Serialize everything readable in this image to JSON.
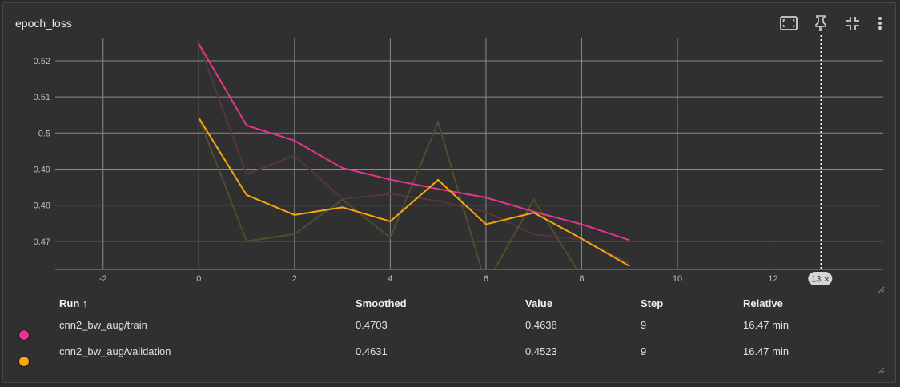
{
  "card": {
    "title": "epoch_loss",
    "toolbar": {
      "fit_icon": "fit-domain-icon",
      "pin_icon": "pin-icon",
      "collapse_icon": "collapse-icon",
      "more_icon": "more-vert-icon"
    }
  },
  "chart_data": {
    "type": "line",
    "title": "epoch_loss",
    "xlabel": "",
    "ylabel": "",
    "xlim": [
      -3,
      14.3
    ],
    "ylim": [
      0.4622,
      0.5262
    ],
    "x_ticks": [
      -2,
      0,
      2,
      4,
      6,
      8,
      10,
      12
    ],
    "y_ticks": [
      0.47,
      0.48,
      0.49,
      0.5,
      0.51,
      0.52
    ],
    "y_tick_labels": [
      "0.47",
      "0.48",
      "0.49",
      "0.5",
      "0.51",
      "0.52"
    ],
    "grid": true,
    "hover_step": 13,
    "hover_label": "13",
    "series": [
      {
        "name": "cnn2_bw_aug/train",
        "color": "#e5358f",
        "raw_color": "#55363f",
        "x": [
          0,
          1,
          2,
          3,
          4,
          5,
          6,
          7,
          8,
          9
        ],
        "smoothed": [
          0.5247,
          0.5021,
          0.4979,
          0.4903,
          0.4871,
          0.4845,
          0.4821,
          0.4782,
          0.4747,
          0.4703
        ],
        "raw": [
          0.5247,
          0.4886,
          0.4938,
          0.4817,
          0.4831,
          0.4812,
          0.4781,
          0.4719,
          0.4705,
          0.4638
        ]
      },
      {
        "name": "cnn2_bw_aug/validation",
        "color": "#f7a70d",
        "raw_color": "#544a2e",
        "x": [
          0,
          1,
          2,
          3,
          4,
          5,
          6,
          7,
          8,
          9
        ],
        "smoothed": [
          0.5042,
          0.4828,
          0.4773,
          0.4794,
          0.4755,
          0.487,
          0.4747,
          0.4779,
          0.4707,
          0.4631
        ],
        "raw": [
          0.5042,
          0.47,
          0.472,
          0.4815,
          0.471,
          0.503,
          0.458,
          0.4815,
          0.46,
          0.4523
        ]
      }
    ]
  },
  "table": {
    "headers": {
      "run": "Run ↑",
      "smoothed": "Smoothed",
      "value": "Value",
      "step": "Step",
      "relative": "Relative"
    },
    "rows": [
      {
        "color": "#e5358f",
        "run": "cnn2_bw_aug/train",
        "smoothed": "0.4703",
        "value": "0.4638",
        "step": "9",
        "relative": "16.47 min"
      },
      {
        "color": "#f7a70d",
        "run": "cnn2_bw_aug/validation",
        "smoothed": "0.4631",
        "value": "0.4523",
        "step": "9",
        "relative": "16.47 min"
      }
    ]
  }
}
